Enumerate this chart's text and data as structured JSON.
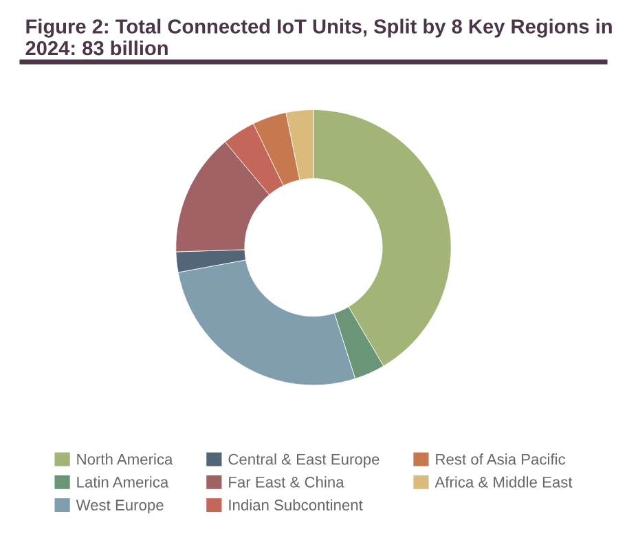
{
  "chart_data": {
    "type": "donut",
    "title": "Figure 2: Total Connected IoT Units, Split by 8 Key Regions in 2024: 83 billion",
    "categories": [
      "North America",
      "Latin America",
      "West Europe",
      "Central & East Europe",
      "Far East & China",
      "Indian Subcontinent",
      "Rest of Asia Pacific",
      "Africa & Middle East"
    ],
    "values": [
      41.5,
      3.6,
      27,
      2.4,
      14.4,
      3.9,
      4,
      3.2
    ],
    "colors": [
      "#a3b576",
      "#6a9577",
      "#809eae",
      "#526678",
      "#a06264",
      "#c4665a",
      "#c8784e",
      "#dabb7c"
    ],
    "legend": "bottom"
  }
}
